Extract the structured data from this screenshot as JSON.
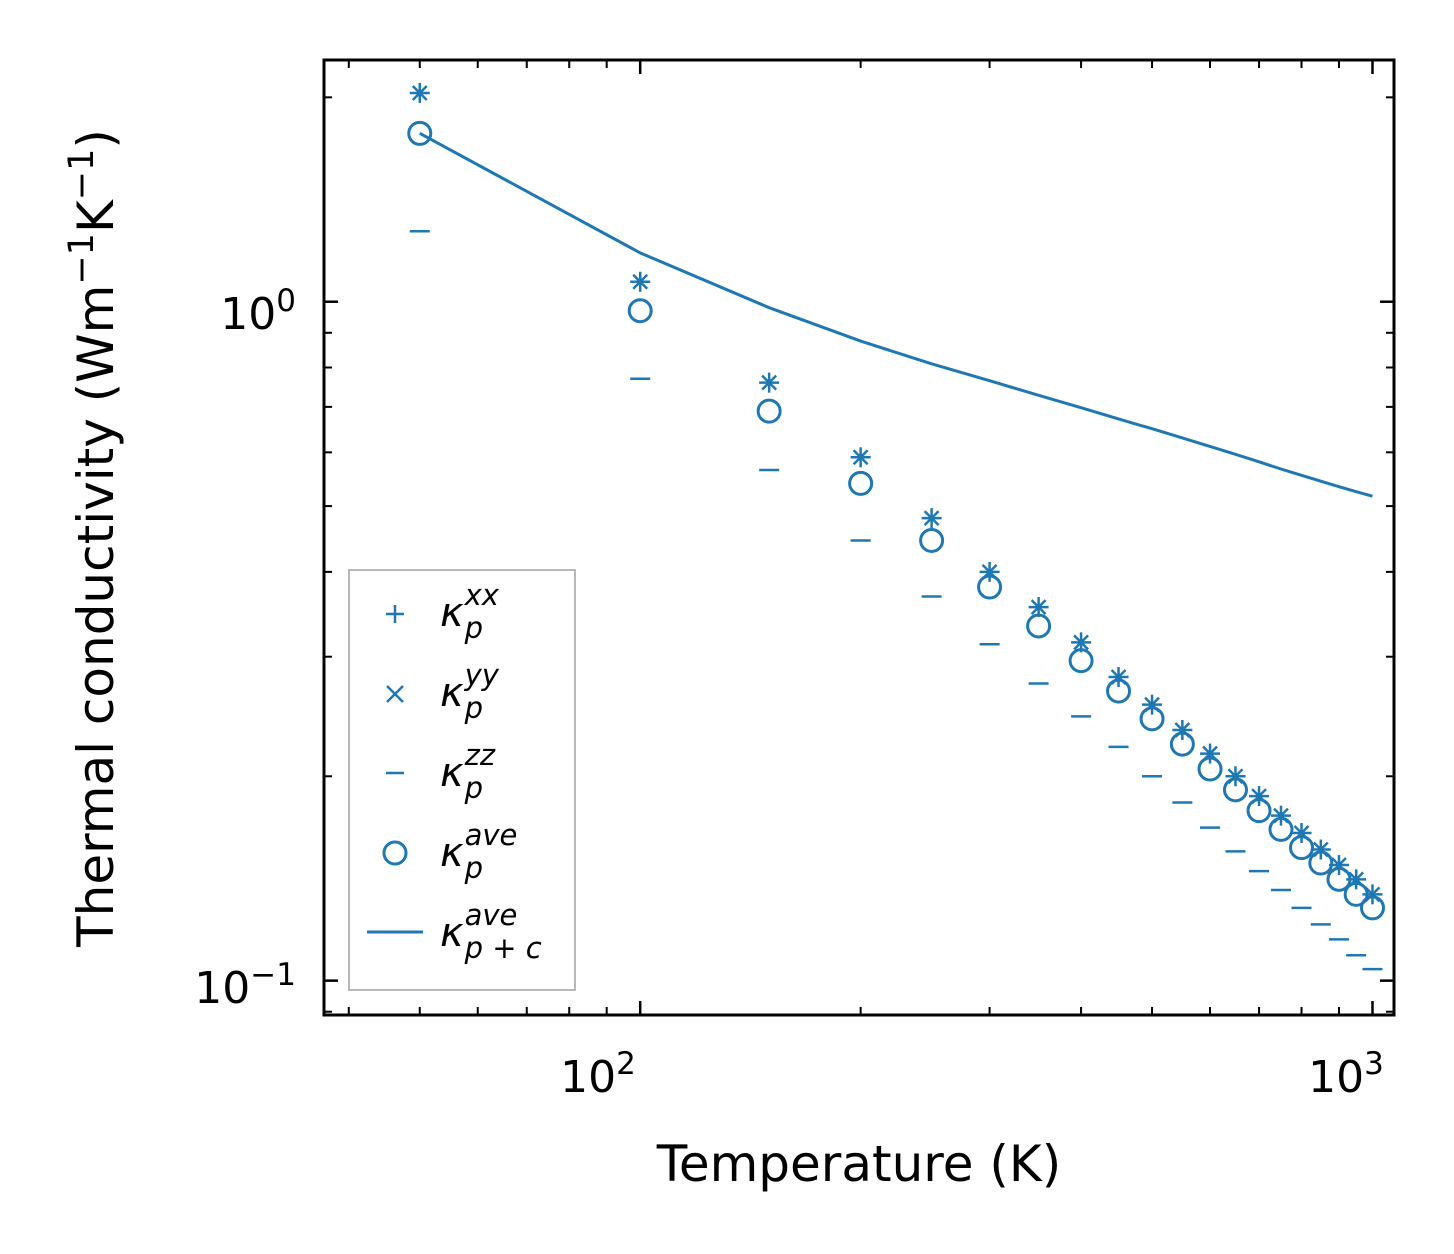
{
  "chart_data": {
    "type": "scatter",
    "scale": {
      "x": "log",
      "y": "log"
    },
    "xlabel": "Temperature (K)",
    "ylabel": "Thermal conductivity (Wm",
    "ylabel_exp1": "−1",
    "ylabel_mid": "K",
    "ylabel_exp2": "−1",
    "ylabel_end": ")",
    "xlim": [
      37,
      1070
    ],
    "ylim": [
      0.089,
      2.27
    ],
    "x_ticks": [
      {
        "base": "10",
        "exp": "2",
        "value": 100
      },
      {
        "base": "10",
        "exp": "3",
        "value": 1000
      }
    ],
    "y_ticks": [
      {
        "base": "10",
        "exp": "0",
        "value": 1
      },
      {
        "base": "10",
        "exp": "−1",
        "value": 0.1
      }
    ],
    "colors": {
      "series": "#1f77b4",
      "axis": "#000000",
      "legend_border": "#a0a0a0"
    },
    "temperatures": [
      50,
      100,
      150,
      200,
      250,
      300,
      350,
      400,
      450,
      500,
      550,
      600,
      650,
      700,
      750,
      800,
      850,
      900,
      950,
      1000
    ],
    "series": [
      {
        "name": "kappa_p_xx",
        "marker": "plus",
        "label_main": "κ",
        "label_sub": "p",
        "label_sup": "xx",
        "values": [
          2.03,
          1.07,
          0.76,
          0.59,
          0.48,
          0.4,
          0.355,
          0.315,
          0.28,
          0.255,
          0.234,
          0.216,
          0.2,
          0.187,
          0.175,
          0.165,
          0.156,
          0.148,
          0.141,
          0.134
        ]
      },
      {
        "name": "kappa_p_yy",
        "marker": "x",
        "label_main": "κ",
        "label_sub": "p",
        "label_sup": "yy",
        "values": [
          2.03,
          1.07,
          0.76,
          0.59,
          0.48,
          0.4,
          0.355,
          0.315,
          0.28,
          0.255,
          0.234,
          0.216,
          0.2,
          0.187,
          0.175,
          0.165,
          0.156,
          0.148,
          0.141,
          0.134
        ]
      },
      {
        "name": "kappa_p_zz",
        "marker": "hline",
        "label_main": "κ",
        "label_sub": "p",
        "label_sup": "zz",
        "values": [
          1.27,
          0.77,
          0.565,
          0.445,
          0.368,
          0.313,
          0.274,
          0.245,
          0.221,
          0.2,
          0.183,
          0.168,
          0.155,
          0.145,
          0.136,
          0.128,
          0.121,
          0.115,
          0.109,
          0.104
        ]
      },
      {
        "name": "kappa_p_ave",
        "marker": "circle",
        "label_main": "κ",
        "label_sub": "p",
        "label_sup": "ave",
        "values": [
          1.77,
          0.97,
          0.69,
          0.54,
          0.445,
          0.38,
          0.333,
          0.296,
          0.267,
          0.243,
          0.223,
          0.205,
          0.191,
          0.178,
          0.167,
          0.157,
          0.149,
          0.141,
          0.134,
          0.128
        ]
      },
      {
        "name": "kappa_pc_ave",
        "marker": "line",
        "label_main": "κ",
        "label_sub": "p + c",
        "label_sup": "ave",
        "values": [
          1.77,
          1.18,
          0.98,
          0.875,
          0.81,
          0.765,
          0.728,
          0.698,
          0.672,
          0.65,
          0.63,
          0.612,
          0.596,
          0.581,
          0.567,
          0.555,
          0.544,
          0.534,
          0.525,
          0.517
        ]
      }
    ],
    "legend": {
      "position": "lower-left"
    }
  }
}
